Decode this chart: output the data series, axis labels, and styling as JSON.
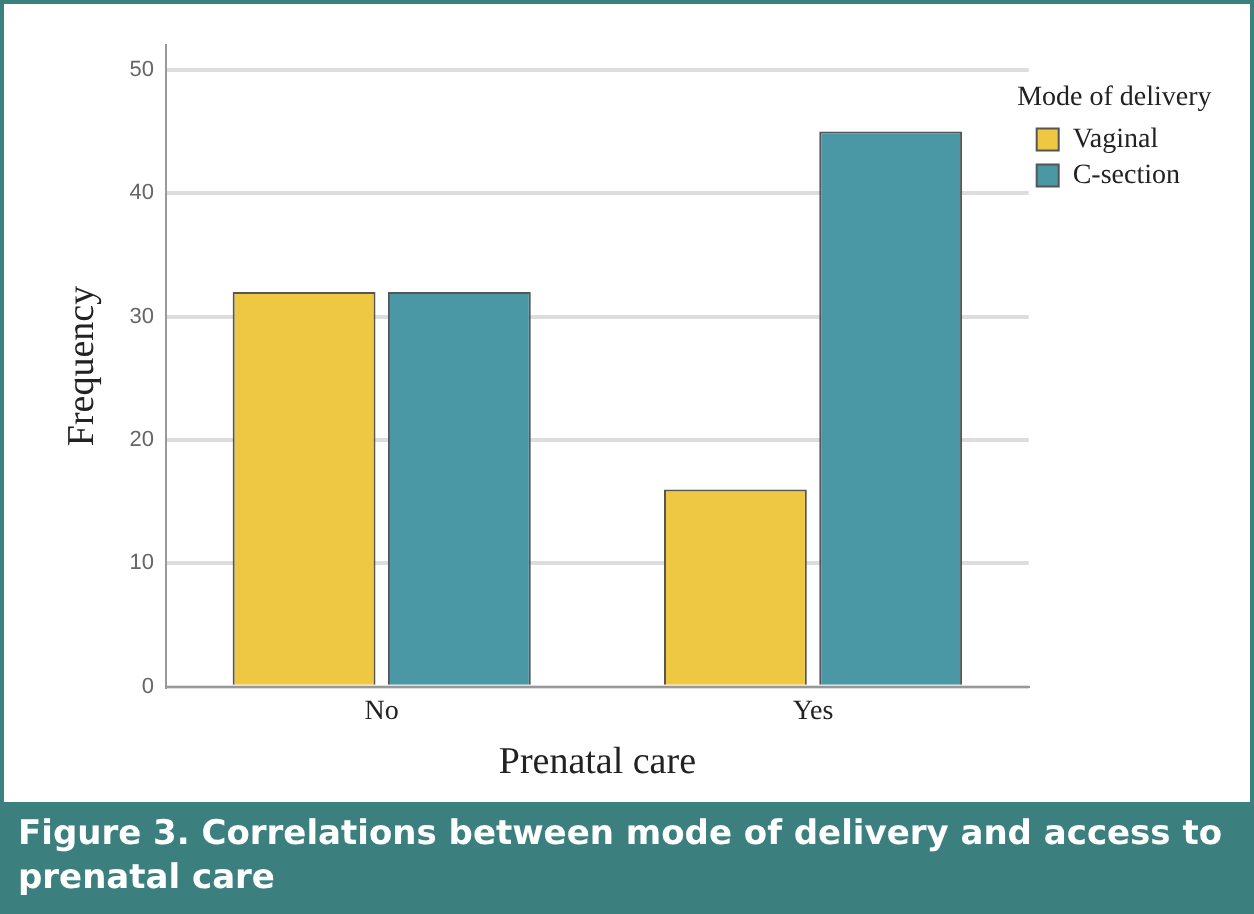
{
  "chart_data": {
    "type": "bar",
    "xlabel": "Prenatal care",
    "ylabel": "Frequency",
    "legend_title": "Mode of delivery",
    "categories": [
      "No",
      "Yes"
    ],
    "series": [
      {
        "name": "Vaginal",
        "color": "#efc843",
        "values": [
          32,
          16
        ]
      },
      {
        "name": "C-section",
        "color": "#4a97a6",
        "values": [
          32,
          45
        ]
      }
    ],
    "ylim": [
      0,
      52
    ],
    "yticks": [
      0,
      10,
      20,
      30,
      40,
      50
    ],
    "grid": "y",
    "legend": "top right",
    "annotations": [
      "Figure 3. Correlations between mode of delivery and access to prenatal care"
    ]
  }
}
